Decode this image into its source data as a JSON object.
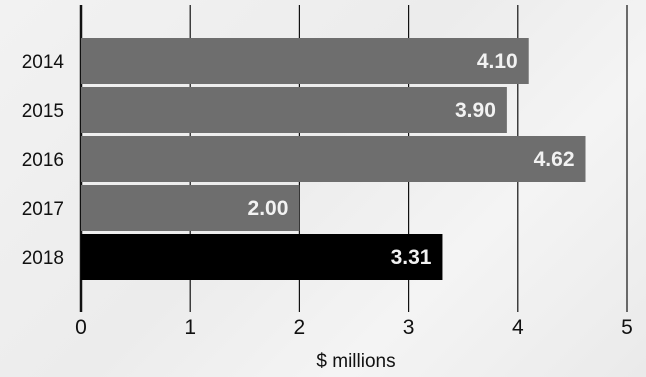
{
  "chart_data": {
    "type": "bar",
    "orientation": "horizontal",
    "categories": [
      "2014",
      "2015",
      "2016",
      "2017",
      "2018"
    ],
    "values": [
      4.1,
      3.9,
      4.62,
      2.0,
      3.31
    ],
    "data_labels": [
      "4.10",
      "3.90",
      "4.62",
      "2.00",
      "3.31"
    ],
    "xlabel": "$ millions",
    "ylabel": "",
    "xlim": [
      0,
      5
    ],
    "xticks": [
      "0",
      "1",
      "2",
      "3",
      "4",
      "5"
    ],
    "grid": "vertical",
    "colors": {
      "default_bar": "#6e6e6e",
      "highlight_bar": "#000000",
      "highlight_index": 4,
      "data_label": "#f2f2f2",
      "gridline": "#111111"
    }
  }
}
